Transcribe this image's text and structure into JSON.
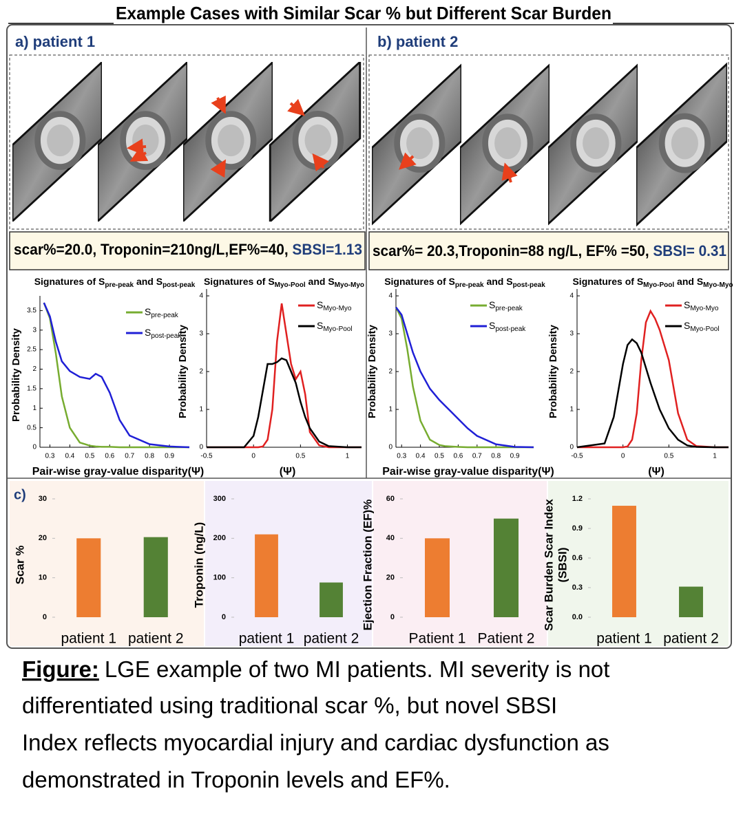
{
  "title": "Example Cases with Similar Scar % but Different Scar Burden",
  "panels": [
    {
      "label": "a) patient 1",
      "stats": "scar%=20.0, Troponin=210ng/L,EF%=40,",
      "sbsi": "SBSI=1.13"
    },
    {
      "label": "b) patient 2",
      "stats": "scar%= 20.3,Troponin=88 ng/L, EF% =50,",
      "sbsi": "SBSI= 0.31"
    }
  ],
  "section_c_label": "c)",
  "caption": {
    "label": "Figure:",
    "lines": [
      "LGE example of two MI patients. MI severity is not",
      "differentiated using traditional scar %, but novel SBSI",
      "Index reflects myocardial injury and cardiac dysfunction as",
      "demonstrated in Troponin levels and EF%."
    ]
  },
  "chart_data": [
    {
      "type": "line",
      "title": [
        "Signatures of S",
        "pre-peak",
        " and S",
        "post-peak"
      ],
      "ylabel": "Probability Density",
      "xlabel": "Pair-wise gray-value disparity(Ψ)",
      "x": [
        0.27,
        0.3,
        0.33,
        0.36,
        0.4,
        0.45,
        0.5,
        0.53,
        0.56,
        0.6,
        0.65,
        0.7,
        0.8,
        0.9,
        1.0
      ],
      "series": [
        {
          "name": [
            "S",
            "pre-peak"
          ],
          "color": "#77ac30",
          "values": [
            3.7,
            3.3,
            2.4,
            1.3,
            0.5,
            0.12,
            0.04,
            0.02,
            0.01,
            0.01,
            0,
            0,
            0,
            0,
            0
          ]
        },
        {
          "name": [
            "S",
            "post-peak"
          ],
          "color": "#1f1fd6",
          "values": [
            3.7,
            3.35,
            2.7,
            2.2,
            1.95,
            1.8,
            1.75,
            1.88,
            1.8,
            1.4,
            0.7,
            0.3,
            0.08,
            0.02,
            0
          ]
        }
      ],
      "xlim": [
        0.25,
        1.0
      ],
      "ylim": [
        0,
        3.7
      ],
      "xticks": [
        0.3,
        0.4,
        0.5,
        0.6,
        0.7,
        0.8,
        0.9
      ],
      "yticks": [
        0,
        0.5,
        1,
        1.5,
        2,
        2.5,
        3,
        3.5
      ]
    },
    {
      "type": "line",
      "title": [
        "Signatures of S",
        "Myo-Pool",
        " and S",
        "Myo-Myo"
      ],
      "ylabel": "Probability Density",
      "xlabel": "(Ψ)",
      "x": [
        -0.5,
        -0.1,
        0,
        0.05,
        0.1,
        0.15,
        0.2,
        0.25,
        0.3,
        0.35,
        0.4,
        0.45,
        0.5,
        0.55,
        0.6,
        0.7,
        0.8,
        1.0,
        1.15
      ],
      "series": [
        {
          "name": [
            "S",
            "Myo-Myo"
          ],
          "color": "#e02020",
          "values": [
            0,
            0,
            0,
            0,
            0.02,
            0.2,
            1.0,
            2.8,
            3.8,
            3.0,
            2.2,
            1.8,
            2.0,
            1.4,
            0.4,
            0.05,
            0,
            0,
            0
          ]
        },
        {
          "name": [
            "S",
            "Myo-Pool"
          ],
          "color": "#000000",
          "values": [
            0,
            0,
            0.3,
            0.8,
            1.5,
            2.2,
            2.2,
            2.25,
            2.35,
            2.3,
            2.0,
            1.7,
            1.2,
            0.8,
            0.5,
            0.15,
            0.03,
            0,
            0
          ]
        }
      ],
      "xlim": [
        -0.5,
        1.15
      ],
      "ylim": [
        0,
        4
      ],
      "xticks": [
        -0.5,
        0,
        0.5,
        1
      ],
      "yticks": [
        0,
        1,
        2,
        3,
        4
      ]
    },
    {
      "type": "line",
      "title": [
        "Signatures of S",
        "pre-peak",
        " and S",
        "post-peak"
      ],
      "ylabel": "Probability Density",
      "xlabel": "Pair-wise gray-value disparity(Ψ)",
      "x": [
        0.27,
        0.3,
        0.33,
        0.36,
        0.4,
        0.45,
        0.5,
        0.53,
        0.56,
        0.6,
        0.65,
        0.7,
        0.8,
        0.9,
        1.0
      ],
      "series": [
        {
          "name": [
            "S",
            "pre-peak"
          ],
          "color": "#77ac30",
          "values": [
            3.7,
            3.4,
            2.6,
            1.6,
            0.7,
            0.2,
            0.06,
            0.03,
            0.02,
            0.01,
            0,
            0,
            0,
            0,
            0
          ]
        },
        {
          "name": [
            "S",
            "post-peak"
          ],
          "color": "#1f1fd6",
          "values": [
            3.7,
            3.5,
            3.0,
            2.5,
            2.0,
            1.55,
            1.25,
            1.1,
            0.95,
            0.75,
            0.5,
            0.3,
            0.08,
            0.01,
            0
          ]
        }
      ],
      "xlim": [
        0.27,
        1.0
      ],
      "ylim": [
        0,
        4
      ],
      "xticks": [
        0.3,
        0.4,
        0.5,
        0.6,
        0.7,
        0.8,
        0.9
      ],
      "yticks": [
        0,
        1,
        2,
        3,
        4
      ]
    },
    {
      "type": "line",
      "title": [
        "Signatures of S",
        "Myo-Pool",
        " and S",
        "Myo-Myo"
      ],
      "ylabel": "Probability Density",
      "xlabel": "(Ψ)",
      "x": [
        -0.5,
        -0.2,
        -0.1,
        0,
        0.05,
        0.1,
        0.15,
        0.2,
        0.25,
        0.3,
        0.35,
        0.4,
        0.5,
        0.6,
        0.7,
        0.8,
        1.0,
        1.15
      ],
      "series": [
        {
          "name": [
            "S",
            "Myo-Myo"
          ],
          "color": "#e02020",
          "values": [
            0,
            0,
            0,
            0,
            0.02,
            0.2,
            0.9,
            2.3,
            3.3,
            3.6,
            3.4,
            3.1,
            2.3,
            0.9,
            0.2,
            0.03,
            0,
            0
          ]
        },
        {
          "name": [
            "S",
            "Myo-Pool"
          ],
          "color": "#000000",
          "values": [
            0,
            0.1,
            0.8,
            2.2,
            2.7,
            2.85,
            2.75,
            2.5,
            2.1,
            1.7,
            1.35,
            1.0,
            0.5,
            0.2,
            0.05,
            0.01,
            0,
            0
          ]
        }
      ],
      "xlim": [
        -0.5,
        1.15
      ],
      "ylim": [
        0,
        4
      ],
      "xticks": [
        -0.5,
        0,
        0.5,
        1
      ],
      "yticks": [
        0,
        1,
        2,
        3,
        4
      ]
    },
    {
      "type": "bar",
      "ylabel": [
        "Scar %"
      ],
      "categories": [
        "patient 1",
        "patient 2"
      ],
      "values": [
        20.0,
        20.3
      ],
      "colors": [
        "#ed7d31",
        "#548235"
      ],
      "ylim": [
        0,
        30
      ],
      "yticks": [
        0,
        10,
        20,
        30
      ]
    },
    {
      "type": "bar",
      "ylabel": [
        "Troponin (ng/L)"
      ],
      "categories": [
        "patient 1",
        "patient 2"
      ],
      "values": [
        210,
        88
      ],
      "colors": [
        "#ed7d31",
        "#548235"
      ],
      "ylim": [
        0,
        300
      ],
      "yticks": [
        0,
        100,
        200,
        300
      ]
    },
    {
      "type": "bar",
      "ylabel": [
        "Ejection Fraction (EF)%"
      ],
      "categories": [
        "Patient 1",
        "Patient 2"
      ],
      "values": [
        40,
        50
      ],
      "colors": [
        "#ed7d31",
        "#548235"
      ],
      "ylim": [
        0,
        60
      ],
      "yticks": [
        0,
        20,
        40,
        60
      ]
    },
    {
      "type": "bar",
      "ylabel": [
        "Scar Burden Scar Index",
        "(SBSI)"
      ],
      "categories": [
        "patient 1",
        "patient 2"
      ],
      "values": [
        1.13,
        0.31
      ],
      "colors": [
        "#ed7d31",
        "#548235"
      ],
      "ylim": [
        0,
        1.2
      ],
      "yticks": [
        {
          "value": 0,
          "label": "0.0"
        },
        0.3,
        0.6,
        0.9,
        1.2
      ]
    }
  ]
}
